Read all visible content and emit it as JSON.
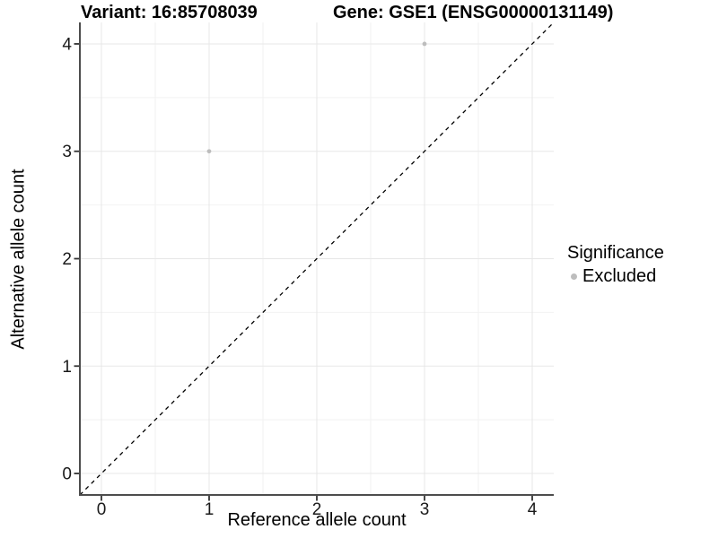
{
  "chart_data": {
    "type": "scatter",
    "title_variant": "Variant: 16:85708039",
    "title_gene": "Gene: GSE1 (ENSG00000131149)",
    "xlabel": "Reference allele count",
    "ylabel": "Alternative allele count",
    "xlim": [
      -0.2,
      4.2
    ],
    "ylim": [
      -0.2,
      4.2
    ],
    "xticks": [
      0,
      1,
      2,
      3,
      4
    ],
    "yticks": [
      0,
      1,
      2,
      3,
      4
    ],
    "x_minor_ticks": [
      0.5,
      1.5,
      2.5,
      3.5
    ],
    "y_minor_ticks": [
      0.5,
      1.5,
      2.5,
      3.5
    ],
    "grid": "major+minor",
    "points": [
      {
        "x": 1,
        "y": 3,
        "significance": "Excluded"
      },
      {
        "x": 3,
        "y": 4,
        "significance": "Excluded"
      }
    ],
    "identity_line": {
      "style": "dashed",
      "from": [
        -0.2,
        -0.2
      ],
      "to": [
        4.2,
        4.2
      ],
      "color": "#000000"
    },
    "legend": {
      "title": "Significance",
      "position": "right",
      "items": [
        {
          "label": "Excluded",
          "color": "#bdbdbd"
        }
      ]
    },
    "style": {
      "background": "#ffffff",
      "point_color": "#bdbdbd",
      "axis_color": "#4d4d4d",
      "tick_color": "#333333",
      "tick_label_color": "#1a1a1a",
      "grid_major_color": "#e7e7e7",
      "grid_minor_color": "#f2f2f2"
    }
  }
}
